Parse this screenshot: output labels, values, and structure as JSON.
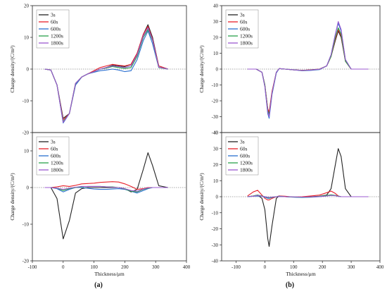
{
  "panel_labels": [
    "(a)",
    "(b)"
  ],
  "chart_data": [
    {
      "type": "line",
      "panel": "(a)",
      "position": "top",
      "xlabel": "",
      "ylabel": "Charge density/(C/m³)",
      "xlim": [
        -100,
        400
      ],
      "ylim": [
        -20,
        20
      ],
      "yticks": [
        -20,
        -10,
        0,
        10,
        20
      ],
      "legend": "top-left",
      "grid": false,
      "x": [
        -60,
        -40,
        -20,
        0,
        20,
        40,
        60,
        80,
        100,
        120,
        140,
        160,
        180,
        200,
        220,
        240,
        260,
        275,
        290,
        310,
        340
      ],
      "series": [
        {
          "name": "3s",
          "color": "#222222",
          "values": [
            0,
            -0.3,
            -5,
            -15.5,
            -14,
            -5,
            -2.5,
            -1.5,
            -0.8,
            0,
            0.5,
            1.2,
            1.0,
            0.8,
            1.5,
            5,
            11,
            14,
            10,
            1,
            0
          ]
        },
        {
          "name": "60s",
          "color": "#e8202a",
          "values": [
            0,
            -0.3,
            -5,
            -16,
            -14,
            -4.5,
            -2.5,
            -1.5,
            -0.5,
            0.5,
            1,
            1.5,
            1.2,
            1.0,
            1.5,
            5,
            11,
            13.5,
            9.5,
            1,
            0
          ]
        },
        {
          "name": "600s",
          "color": "#2a6fd0",
          "values": [
            0,
            -0.3,
            -5,
            -17,
            -14,
            -5,
            -2.5,
            -1.5,
            -1,
            -0.5,
            -0.3,
            0,
            -0.3,
            -0.8,
            -0.5,
            3,
            9,
            12,
            8,
            0.5,
            0
          ]
        },
        {
          "name": "1200s",
          "color": "#2aa04a",
          "values": [
            0,
            -0.3,
            -5,
            -16.5,
            -14,
            -4.5,
            -2.5,
            -1.5,
            -0.8,
            0,
            0.3,
            0.8,
            0.5,
            0.2,
            0.5,
            4,
            10,
            12.5,
            9,
            0.5,
            0
          ]
        },
        {
          "name": "1800s",
          "color": "#9b59d0",
          "values": [
            0,
            -0.3,
            -5,
            -16.8,
            -14,
            -4.5,
            -2.5,
            -1.5,
            -0.8,
            0,
            0.5,
            1.0,
            0.8,
            0.5,
            1.0,
            4.5,
            10.5,
            13,
            9.2,
            0.6,
            0
          ]
        }
      ]
    },
    {
      "type": "line",
      "panel": "(a)",
      "position": "bottom",
      "xlabel": "Thickness/μm",
      "ylabel": "Charge density/(C/m³)",
      "xlim": [
        -100,
        400
      ],
      "ylim": [
        -20,
        15
      ],
      "xticks": [
        -100,
        0,
        100,
        200,
        300,
        400
      ],
      "yticks": [
        -20,
        -10,
        0,
        10
      ],
      "legend": "top-left",
      "grid": false,
      "x": [
        -60,
        -40,
        -20,
        0,
        20,
        40,
        60,
        80,
        100,
        120,
        140,
        160,
        180,
        200,
        220,
        240,
        260,
        275,
        290,
        310,
        340
      ],
      "series": [
        {
          "name": "3s",
          "color": "#222222",
          "values": [
            0,
            0,
            -3,
            -14,
            -9,
            -1.5,
            -0.3,
            0,
            0,
            0,
            0,
            0,
            0,
            -0.3,
            -1.2,
            -0.5,
            5,
            9.5,
            6,
            0.5,
            0
          ]
        },
        {
          "name": "60s",
          "color": "#e8202a",
          "values": [
            0,
            0,
            0.2,
            0.5,
            0.3,
            0.6,
            1.0,
            1.1,
            1.2,
            1.4,
            1.5,
            1.6,
            1.5,
            1.0,
            0.3,
            -0.5,
            -0.3,
            0,
            0,
            0,
            0
          ]
        },
        {
          "name": "600s",
          "color": "#2a6fd0",
          "values": [
            0,
            0,
            -0.3,
            -1.2,
            -0.5,
            0,
            0,
            -0.2,
            -0.4,
            -0.5,
            -0.5,
            -0.4,
            -0.3,
            -0.5,
            -1.0,
            -1.5,
            -0.8,
            -0.3,
            0,
            0,
            0
          ]
        },
        {
          "name": "1200s",
          "color": "#2aa04a",
          "values": [
            0,
            0,
            -0.2,
            -0.8,
            -0.3,
            0,
            0.2,
            0.3,
            0.3,
            0.3,
            0.2,
            0.2,
            0,
            -0.4,
            -1.0,
            -1.2,
            -0.5,
            -0.2,
            0,
            0,
            0
          ]
        },
        {
          "name": "1800s",
          "color": "#9b59d0",
          "values": [
            0,
            0,
            -0.2,
            -0.5,
            -0.2,
            0.1,
            0.3,
            0.3,
            0.3,
            0.3,
            0.2,
            0.1,
            0,
            -0.3,
            -0.8,
            -1.0,
            -0.4,
            -0.1,
            0,
            0,
            0
          ]
        }
      ]
    },
    {
      "type": "line",
      "panel": "(b)",
      "position": "top",
      "xlabel": "",
      "ylabel": "Charge density/(C/m³)",
      "xlim": [
        -150,
        400
      ],
      "ylim": [
        -40,
        40
      ],
      "yticks": [
        -40,
        -30,
        -20,
        -10,
        0,
        10,
        20,
        30,
        40
      ],
      "legend": "top-left",
      "grid": false,
      "x": [
        -60,
        -30,
        -10,
        0,
        10,
        15,
        25,
        40,
        50,
        70,
        100,
        130,
        160,
        190,
        215,
        230,
        245,
        255,
        265,
        280,
        300,
        330,
        360
      ],
      "series": [
        {
          "name": "3s",
          "color": "#222222",
          "values": [
            0,
            0,
            -2,
            -10,
            -25,
            -28,
            -15,
            -2,
            0.3,
            0,
            -0.5,
            -0.8,
            -0.5,
            0,
            2,
            8,
            18,
            24,
            20,
            5,
            0,
            0,
            0
          ]
        },
        {
          "name": "60s",
          "color": "#e8202a",
          "values": [
            0,
            0,
            -2,
            -10,
            -25,
            -27,
            -14,
            -2,
            0.3,
            0,
            -0.5,
            -0.8,
            -0.5,
            0,
            2,
            8,
            19,
            25,
            21,
            5,
            0,
            0,
            0
          ]
        },
        {
          "name": "600s",
          "color": "#2a6fd0",
          "values": [
            0,
            0,
            -2,
            -11,
            -28,
            -31,
            -16,
            -2.5,
            0.3,
            0,
            -0.5,
            -1,
            -0.8,
            -0.3,
            2,
            9,
            22,
            29,
            24,
            6,
            0,
            0,
            0
          ]
        },
        {
          "name": "1200s",
          "color": "#2aa04a",
          "values": [
            0,
            0,
            -2,
            -10,
            -26,
            -29,
            -15,
            -2,
            0.3,
            0,
            -0.5,
            -0.9,
            -0.6,
            -0.1,
            2,
            8,
            20,
            26,
            22,
            5,
            0,
            0,
            0
          ]
        },
        {
          "name": "1800s",
          "color": "#9b59d0",
          "values": [
            0,
            0,
            -2,
            -11,
            -27,
            -30,
            -15,
            -2,
            0.3,
            0,
            -0.5,
            -0.9,
            -0.6,
            -0.1,
            2,
            9,
            22,
            30,
            25,
            6,
            0,
            0,
            0
          ]
        }
      ]
    },
    {
      "type": "line",
      "panel": "(b)",
      "position": "bottom",
      "xlabel": "Thickness/μm",
      "ylabel": "Charge density/(C/m³)",
      "xlim": [
        -150,
        400
      ],
      "ylim": [
        -40,
        40
      ],
      "xticks": [
        -100,
        0,
        100,
        200,
        300,
        400
      ],
      "yticks": [
        -40,
        -30,
        -20,
        -10,
        0,
        10,
        20,
        30,
        40
      ],
      "legend": "top-left",
      "grid": false,
      "x": [
        -60,
        -40,
        -25,
        -10,
        0,
        10,
        15,
        25,
        40,
        50,
        70,
        100,
        130,
        160,
        190,
        215,
        230,
        245,
        255,
        265,
        280,
        300,
        330,
        360
      ],
      "series": [
        {
          "name": "3s",
          "color": "#222222",
          "values": [
            0,
            0.5,
            1,
            -1,
            -8,
            -26,
            -31,
            -18,
            -1,
            0.5,
            0,
            -0.2,
            -0.3,
            0,
            0.3,
            1,
            5,
            20,
            30,
            25,
            5,
            0,
            0,
            0
          ]
        },
        {
          "name": "60s",
          "color": "#e8202a",
          "values": [
            0.5,
            3,
            4,
            1,
            -1,
            -2,
            -2,
            -1,
            0,
            0.5,
            0.3,
            -0.2,
            0,
            0.5,
            1,
            2.5,
            3.5,
            2,
            0.5,
            0,
            0,
            0,
            0,
            0
          ]
        },
        {
          "name": "600s",
          "color": "#2a6fd0",
          "values": [
            0,
            0.3,
            0.5,
            0.3,
            -0.3,
            -1,
            -1,
            -0.5,
            0,
            0.3,
            0,
            -0.3,
            -0.5,
            -0.3,
            0,
            0.5,
            1,
            0.8,
            0.3,
            0,
            0,
            0,
            0,
            0
          ]
        },
        {
          "name": "1200s",
          "color": "#2aa04a",
          "values": [
            0,
            0.5,
            1,
            0.5,
            0,
            -0.5,
            -0.8,
            -0.3,
            0,
            0.2,
            0,
            -0.2,
            -0.3,
            -0.2,
            0.2,
            0.8,
            1.2,
            0.8,
            0.3,
            0,
            0,
            0,
            0,
            0
          ]
        },
        {
          "name": "1800s",
          "color": "#9b59d0",
          "values": [
            0,
            0.3,
            0.8,
            0.3,
            0,
            -0.3,
            -0.5,
            -0.2,
            0,
            0.1,
            0,
            -0.1,
            -0.2,
            -0.1,
            0.1,
            0.5,
            0.8,
            0.6,
            0.2,
            0,
            0,
            0,
            0,
            0
          ]
        }
      ]
    }
  ]
}
